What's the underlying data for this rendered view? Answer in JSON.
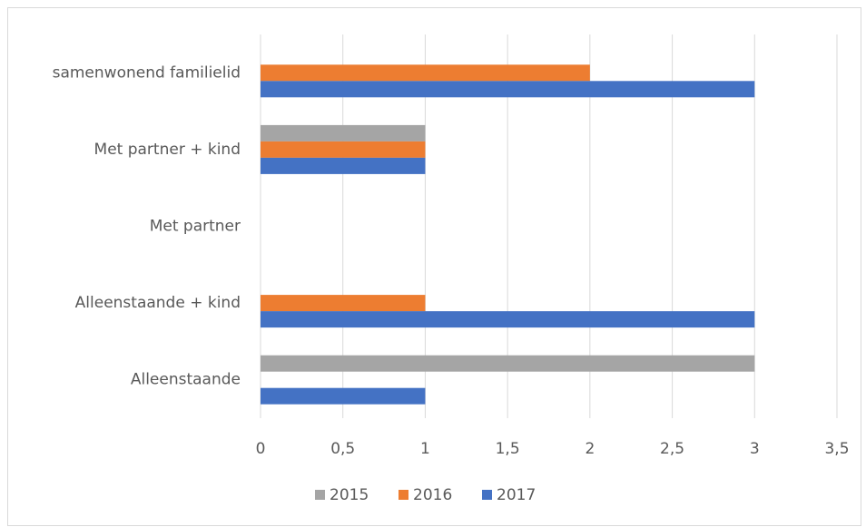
{
  "chart_data": {
    "type": "bar",
    "orientation": "horizontal",
    "categories": [
      "Alleenstaande",
      "Alleenstaande + kind",
      "Met partner",
      "Met partner + kind",
      "samenwonend familielid"
    ],
    "series": [
      {
        "name": "2015",
        "color": "#a5a5a5",
        "values": [
          3,
          0,
          0,
          1,
          0
        ]
      },
      {
        "name": "2016",
        "color": "#ed7d31",
        "values": [
          0,
          1,
          0,
          1,
          2
        ]
      },
      {
        "name": "2017",
        "color": "#4472c4",
        "values": [
          1,
          3,
          0,
          1,
          3
        ]
      }
    ],
    "xlim": [
      0,
      3.5
    ],
    "xticks": [
      0,
      {
        "value": 0.5,
        "label": "0,5"
      },
      1,
      {
        "value": 1.5,
        "label": "1,5"
      },
      2,
      {
        "value": 2.5,
        "label": "2,5"
      },
      3,
      {
        "value": 3.5,
        "label": "3,5"
      }
    ],
    "grid": true,
    "legend": "bottom"
  }
}
